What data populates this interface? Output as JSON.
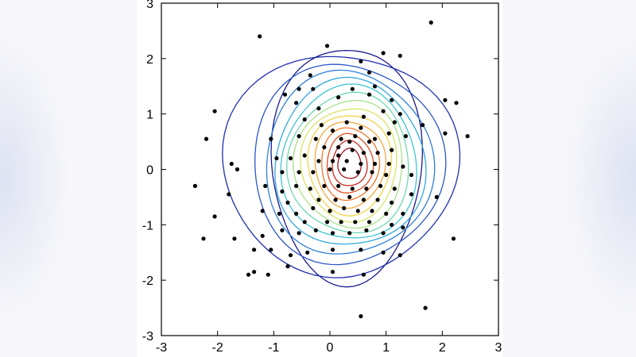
{
  "chart_data": {
    "type": "scatter",
    "title": "",
    "xlabel": "",
    "ylabel": "",
    "xlim": [
      -3,
      3
    ],
    "ylim": [
      -3,
      3
    ],
    "grid": false,
    "xticks": [
      "-3",
      "-2",
      "-1",
      "0",
      "1",
      "2",
      "3"
    ],
    "yticks": [
      "-3",
      "-2",
      "-1",
      "0",
      "1",
      "2",
      "3"
    ],
    "contour_center": [
      0.35,
      0.1
    ],
    "contour_colors": [
      "#1a1a8c",
      "#1f2fae",
      "#2a56c8",
      "#2f7fd9",
      "#2fa8dd",
      "#3fc6d0",
      "#6dd6b0",
      "#a8e08a",
      "#d9e468",
      "#f2d44a",
      "#f4a93a",
      "#ee7a2c",
      "#e04c23",
      "#c8281c",
      "#a0121a"
    ],
    "contour_levels": [
      {
        "rx": 1.3,
        "ry": 2.2,
        "dx": -0.05
      },
      {
        "rx": 1.95,
        "ry": 2.05,
        "dx": -0.1
      },
      {
        "rx": 1.65,
        "ry": 1.85,
        "dx": -0.05
      },
      {
        "rx": 1.45,
        "ry": 1.7,
        "dx": -0.03
      },
      {
        "rx": 1.3,
        "ry": 1.55,
        "dx": 0.0
      },
      {
        "rx": 1.17,
        "ry": 1.43,
        "dx": 0.0
      },
      {
        "rx": 1.05,
        "ry": 1.3,
        "dx": 0.0
      },
      {
        "rx": 0.94,
        "ry": 1.18,
        "dx": 0.0
      },
      {
        "rx": 0.83,
        "ry": 1.05,
        "dx": 0.0
      },
      {
        "rx": 0.72,
        "ry": 0.93,
        "dx": 0.0
      },
      {
        "rx": 0.61,
        "ry": 0.8,
        "dx": 0.0
      },
      {
        "rx": 0.5,
        "ry": 0.67,
        "dx": 0.0
      },
      {
        "rx": 0.4,
        "ry": 0.55,
        "dx": 0.0
      },
      {
        "rx": 0.3,
        "ry": 0.42,
        "dx": 0.0
      },
      {
        "rx": 0.2,
        "ry": 0.28,
        "dx": 0.0
      }
    ],
    "points": [
      [
        -1.25,
        2.4
      ],
      [
        -0.05,
        2.23
      ],
      [
        1.8,
        2.65
      ],
      [
        0.95,
        2.1
      ],
      [
        1.25,
        2.05
      ],
      [
        0.55,
        1.95
      ],
      [
        -0.35,
        1.7
      ],
      [
        0.7,
        1.75
      ],
      [
        -0.55,
        1.45
      ],
      [
        -0.3,
        1.45
      ],
      [
        0.8,
        1.5
      ],
      [
        1.1,
        1.25
      ],
      [
        2.05,
        1.25
      ],
      [
        2.25,
        1.2
      ],
      [
        -2.05,
        1.05
      ],
      [
        -0.8,
        1.35
      ],
      [
        -0.6,
        1.2
      ],
      [
        0.4,
        1.45
      ],
      [
        0.7,
        1.35
      ],
      [
        0.15,
        1.3
      ],
      [
        -0.2,
        1.1
      ],
      [
        0.95,
        1.05
      ],
      [
        1.25,
        1.0
      ],
      [
        1.65,
        0.8
      ],
      [
        2.05,
        0.65
      ],
      [
        2.45,
        0.6
      ],
      [
        -2.2,
        0.55
      ],
      [
        -1.05,
        0.55
      ],
      [
        -0.55,
        0.6
      ],
      [
        -0.25,
        0.55
      ],
      [
        0.05,
        0.7
      ],
      [
        0.3,
        0.85
      ],
      [
        0.55,
        0.75
      ],
      [
        0.8,
        0.55
      ],
      [
        1.05,
        0.65
      ],
      [
        1.35,
        0.6
      ],
      [
        -0.1,
        0.4
      ],
      [
        0.15,
        0.4
      ],
      [
        0.4,
        0.35
      ],
      [
        0.6,
        0.3
      ],
      [
        0.85,
        0.3
      ],
      [
        1.1,
        0.35
      ],
      [
        -0.95,
        0.2
      ],
      [
        -0.7,
        0.2
      ],
      [
        -0.45,
        0.25
      ],
      [
        -0.2,
        0.15
      ],
      [
        0.05,
        0.15
      ],
      [
        0.3,
        0.15
      ],
      [
        0.55,
        0.1
      ],
      [
        0.8,
        0.1
      ],
      [
        1.05,
        0.1
      ],
      [
        1.3,
        0.05
      ],
      [
        -1.75,
        0.1
      ],
      [
        -1.65,
        0.0
      ],
      [
        -0.85,
        -0.05
      ],
      [
        -0.55,
        -0.05
      ],
      [
        -0.3,
        -0.05
      ],
      [
        0.0,
        0.0
      ],
      [
        0.25,
        0.0
      ],
      [
        0.5,
        -0.05
      ],
      [
        0.75,
        -0.05
      ],
      [
        1.0,
        -0.1
      ],
      [
        1.45,
        -0.1
      ],
      [
        -2.4,
        -0.3
      ],
      [
        -1.8,
        -0.45
      ],
      [
        -1.15,
        -0.3
      ],
      [
        -0.85,
        -0.4
      ],
      [
        -0.6,
        -0.3
      ],
      [
        -0.35,
        -0.35
      ],
      [
        -0.1,
        -0.3
      ],
      [
        0.15,
        -0.3
      ],
      [
        0.4,
        -0.35
      ],
      [
        0.65,
        -0.35
      ],
      [
        0.9,
        -0.3
      ],
      [
        1.15,
        -0.35
      ],
      [
        1.45,
        -0.45
      ],
      [
        1.9,
        -0.5
      ],
      [
        -2.05,
        -0.85
      ],
      [
        -1.2,
        -0.75
      ],
      [
        -0.9,
        -0.8
      ],
      [
        -0.6,
        -0.8
      ],
      [
        -0.3,
        -0.7
      ],
      [
        0.0,
        -0.75
      ],
      [
        0.25,
        -0.7
      ],
      [
        0.5,
        -0.75
      ],
      [
        0.75,
        -0.75
      ],
      [
        1.0,
        -0.8
      ],
      [
        1.3,
        -0.8
      ],
      [
        -1.7,
        -1.25
      ],
      [
        -1.2,
        -1.2
      ],
      [
        -0.85,
        -1.1
      ],
      [
        -0.55,
        -1.15
      ],
      [
        -0.25,
        -1.1
      ],
      [
        0.05,
        -1.15
      ],
      [
        0.35,
        -1.15
      ],
      [
        0.65,
        -1.1
      ],
      [
        0.95,
        -1.15
      ],
      [
        1.3,
        -1.05
      ],
      [
        2.2,
        -1.25
      ],
      [
        -2.25,
        -1.25
      ],
      [
        -1.35,
        -1.45
      ],
      [
        -1.05,
        -1.45
      ],
      [
        -0.7,
        -1.55
      ],
      [
        -0.4,
        -1.5
      ],
      [
        0.05,
        -1.45
      ],
      [
        0.55,
        -1.45
      ],
      [
        0.95,
        -1.5
      ],
      [
        1.25,
        -1.55
      ],
      [
        -1.35,
        -1.85
      ],
      [
        -1.45,
        -1.9
      ],
      [
        -1.1,
        -1.9
      ],
      [
        -0.75,
        -1.75
      ],
      [
        0.05,
        -1.85
      ],
      [
        0.6,
        -1.9
      ],
      [
        1.7,
        -2.5
      ],
      [
        0.55,
        -2.65
      ],
      [
        0.2,
        0.55
      ],
      [
        0.45,
        0.6
      ],
      [
        -0.15,
        0.8
      ],
      [
        0.6,
        0.95
      ],
      [
        -0.45,
        0.9
      ],
      [
        1.15,
        0.85
      ],
      [
        0.35,
        -0.5
      ],
      [
        0.1,
        -0.55
      ],
      [
        -0.2,
        -0.55
      ],
      [
        0.6,
        -0.55
      ],
      [
        0.85,
        -0.55
      ],
      [
        -0.75,
        -0.6
      ],
      [
        1.1,
        -0.6
      ],
      [
        0.2,
        -0.95
      ],
      [
        -0.05,
        -0.95
      ],
      [
        0.45,
        -0.95
      ],
      [
        0.7,
        -0.95
      ],
      [
        -0.45,
        -0.95
      ],
      [
        1.1,
        -1.0
      ],
      [
        0.15,
        0.25
      ],
      [
        0.35,
        0.5
      ],
      [
        0.7,
        0.5
      ]
    ]
  }
}
